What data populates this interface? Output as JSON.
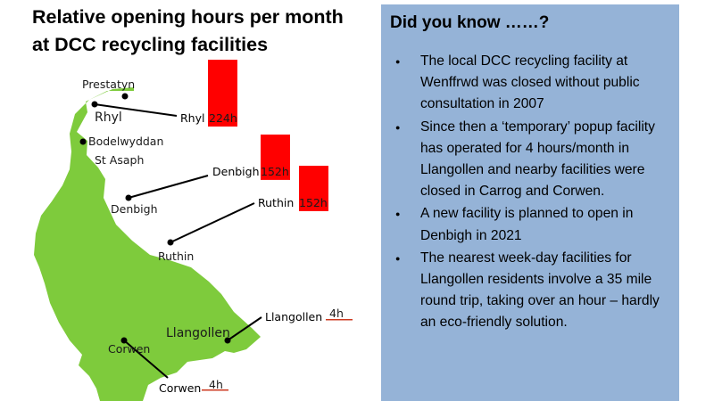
{
  "title_line1": "Relative opening hours per month",
  "title_line2": "at DCC recycling facilities",
  "towns": {
    "prestatyn": "Prestatyn",
    "rhyl": "Rhyl",
    "bodelwyddan": "Bodelwyddan",
    "st_asaph": "St Asaph",
    "denbigh": "Denbigh",
    "ruthin": "Ruthin",
    "llangollen": "Llangollen",
    "corwen": "Corwen"
  },
  "facilities": [
    {
      "name": "Rhyl",
      "label": "224h",
      "hours": 224
    },
    {
      "name": "Denbigh",
      "label": "152h",
      "hours": 152
    },
    {
      "name": "Ruthin",
      "label": "152h",
      "hours": 152
    },
    {
      "name": "Llangollen",
      "label": "4h",
      "hours": 4
    },
    {
      "name": "Corwen",
      "label": "4h",
      "hours": 4
    }
  ],
  "colors": {
    "map": "#7ecb3c",
    "bar": "#ff0000",
    "panel": "#95b3d7"
  },
  "panel": {
    "heading": "Did you know ……?",
    "bullets": [
      "The local DCC recycling facility at Wenffrwd was closed without public consultation in 2007",
      "Since then a ‘temporary’ popup facility has operated for 4 hours/month in Llangollen and nearby facilities were closed in Carrog and Corwen.",
      "A new facility is planned to open in Denbigh in 2021",
      "The nearest week-day facilities for Llangollen residents involve a 35 mile round trip, taking over an hour – hardly an eco-friendly solution."
    ]
  }
}
